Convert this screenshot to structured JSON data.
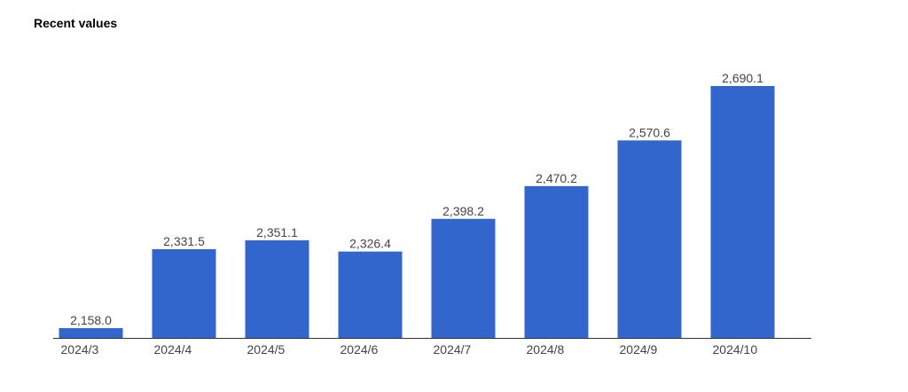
{
  "chart_data": {
    "type": "bar",
    "title": "Recent values",
    "categories": [
      "2024/3",
      "2024/4",
      "2024/5",
      "2024/6",
      "2024/7",
      "2024/8",
      "2024/9",
      "2024/10"
    ],
    "values": [
      2158.0,
      2331.5,
      2351.1,
      2326.4,
      2398.2,
      2470.2,
      2570.6,
      2690.1
    ],
    "value_labels": [
      "2,158.0",
      "2,331.5",
      "2,351.1",
      "2,326.4",
      "2,398.2",
      "2,470.2",
      "2,570.6",
      "2,690.1"
    ],
    "color": "#3366cc",
    "ylim": [
      2136.6,
      2690.1
    ]
  }
}
